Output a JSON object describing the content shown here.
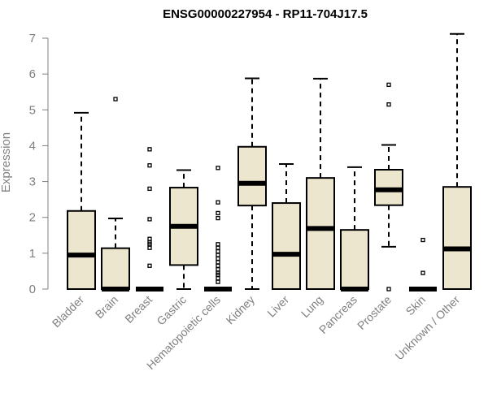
{
  "chart_data": {
    "type": "boxplot",
    "title": "ENSG00000227954 - RP11-704J17.5",
    "xlabel": "",
    "ylabel": "Expression",
    "ylim": [
      0,
      7
    ],
    "yticks": [
      "0",
      "1",
      "2",
      "3",
      "4",
      "5",
      "6",
      "7"
    ],
    "categories": [
      "Bladder",
      "Brain",
      "Breast",
      "Gastric",
      "Hematopoietic cells",
      "Kidney",
      "Liver",
      "Lung",
      "Pancreas",
      "Prostate",
      "Skin",
      "Unknown / Other"
    ],
    "boxes": [
      {
        "min": 0,
        "q1": 0,
        "median": 0.95,
        "q3": 2.18,
        "max": 4.92,
        "outliers": []
      },
      {
        "min": 0,
        "q1": 0,
        "median": 0,
        "q3": 1.14,
        "max": 1.97,
        "outliers": [
          5.3
        ]
      },
      {
        "min": 0,
        "q1": 0,
        "median": 0,
        "q3": 0,
        "max": 0,
        "outliers": [
          3.9,
          3.45,
          2.8,
          1.95,
          1.4,
          1.3,
          1.25,
          1.15,
          0.65
        ]
      },
      {
        "min": 0,
        "q1": 0.67,
        "median": 1.75,
        "q3": 2.83,
        "max": 3.32,
        "outliers": []
      },
      {
        "min": 0,
        "q1": 0,
        "median": 0,
        "q3": 0,
        "max": 0,
        "outliers": [
          3.38,
          2.42,
          2.12,
          1.98,
          1.25,
          1.15,
          1.05,
          0.95,
          0.85,
          0.75,
          0.65,
          0.55,
          0.45,
          0.4,
          0.3,
          0.2
        ]
      },
      {
        "min": 0,
        "q1": 2.33,
        "median": 2.95,
        "q3": 3.97,
        "max": 5.88,
        "outliers": []
      },
      {
        "min": 0,
        "q1": 0,
        "median": 0.97,
        "q3": 2.4,
        "max": 3.49,
        "outliers": []
      },
      {
        "min": 0,
        "q1": 0,
        "median": 1.69,
        "q3": 3.1,
        "max": 5.87,
        "outliers": []
      },
      {
        "min": 0,
        "q1": 0,
        "median": 0,
        "q3": 1.65,
        "max": 3.4,
        "outliers": []
      },
      {
        "min": 1.18,
        "q1": 2.34,
        "median": 2.77,
        "q3": 3.33,
        "max": 4.02,
        "outliers": [
          5.7,
          5.15,
          0
        ]
      },
      {
        "min": 0,
        "q1": 0,
        "median": 0,
        "q3": 0,
        "max": 0,
        "outliers": [
          1.37,
          0.45
        ]
      },
      {
        "min": 0,
        "q1": 0,
        "median": 1.12,
        "q3": 2.85,
        "max": 7.12,
        "outliers": []
      }
    ]
  }
}
